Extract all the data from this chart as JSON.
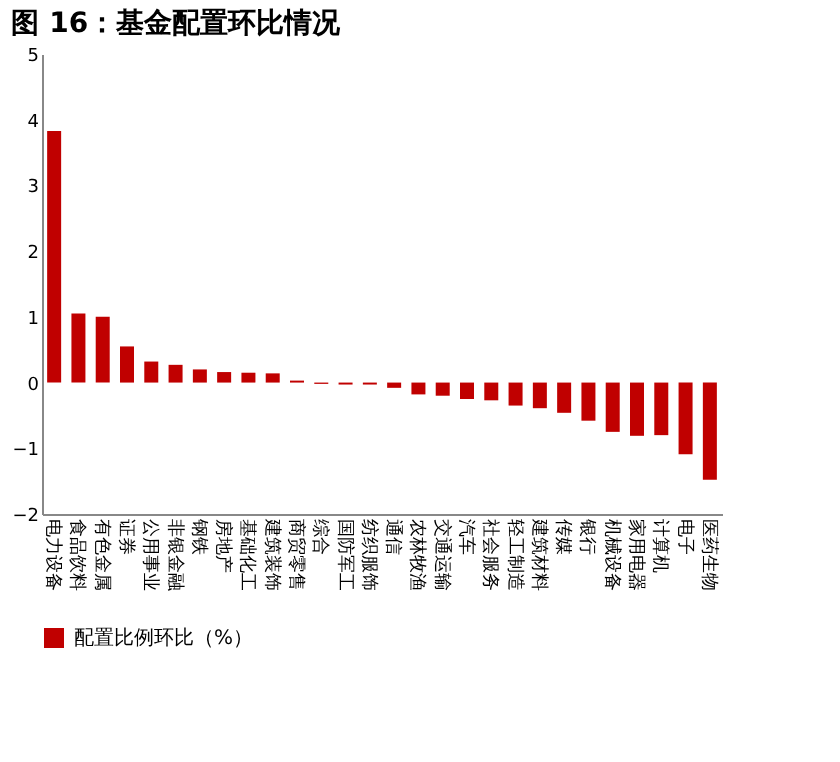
{
  "chart_data": {
    "type": "bar",
    "title": "图 16：基金配置环比情况",
    "categories": [
      "电力设备",
      "食品饮料",
      "有色金属",
      "证券",
      "公用事业",
      "非银金融",
      "钢铁",
      "房地产",
      "基础化工",
      "建筑装饰",
      "商贸零售",
      "综合",
      "国防军工",
      "纺织服饰",
      "通信",
      "农林牧渔",
      "交通运输",
      "汽车",
      "社会服务",
      "轻工制造",
      "建筑材料",
      "传媒",
      "银行",
      "机械设备",
      "家用电器",
      "计算机",
      "电子",
      "医药生物"
    ],
    "series": [
      {
        "name": "配置比例环比（%）",
        "color": "#c00000",
        "values": [
          3.83,
          1.05,
          1.0,
          0.55,
          0.32,
          0.27,
          0.2,
          0.16,
          0.15,
          0.14,
          0.03,
          -0.02,
          -0.03,
          -0.03,
          -0.08,
          -0.18,
          -0.2,
          -0.25,
          -0.27,
          -0.35,
          -0.39,
          -0.46,
          -0.58,
          -0.75,
          -0.81,
          -0.8,
          -1.09,
          -1.48
        ]
      }
    ],
    "ylim": [
      -2,
      5
    ],
    "yticks": [
      -2,
      -1,
      0,
      1,
      2,
      3,
      4,
      5
    ],
    "grid": false,
    "legend": "bottom"
  }
}
